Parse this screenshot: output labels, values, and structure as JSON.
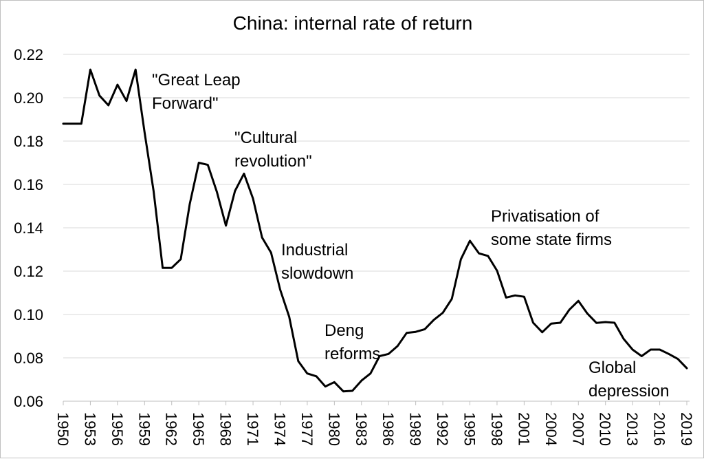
{
  "chart_data": {
    "type": "line",
    "title": "China: internal rate of return",
    "xlabel": "",
    "ylabel": "",
    "ylim": [
      0.06,
      0.22
    ],
    "yticks": [
      "0.06",
      "0.08",
      "0.10",
      "0.12",
      "0.14",
      "0.16",
      "0.18",
      "0.20",
      "0.22"
    ],
    "xticks": [
      "1950",
      "1953",
      "1956",
      "1959",
      "1962",
      "1965",
      "1968",
      "1971",
      "1974",
      "1977",
      "1980",
      "1983",
      "1986",
      "1989",
      "1992",
      "1995",
      "1998",
      "2001",
      "2004",
      "2007",
      "2010",
      "2013",
      "2016",
      "2019"
    ],
    "grid": true,
    "series": [
      {
        "x": [
          1950,
          1951,
          1952,
          1953,
          1954,
          1955,
          1956,
          1957,
          1958,
          1959,
          1960,
          1961,
          1962,
          1963,
          1964,
          1965,
          1966,
          1967,
          1968,
          1969,
          1970,
          1971,
          1972,
          1973,
          1974,
          1975,
          1976,
          1977,
          1978,
          1979,
          1980,
          1981,
          1982,
          1983,
          1984,
          1985,
          1986,
          1987,
          1988,
          1989,
          1990,
          1991,
          1992,
          1993,
          1994,
          1995,
          1996,
          1997,
          1998,
          1999,
          2000,
          2001,
          2002,
          2003,
          2004,
          2005,
          2006,
          2007,
          2008,
          2009,
          2010,
          2011,
          2012,
          2013,
          2014,
          2015,
          2016,
          2017,
          2018,
          2019
        ],
        "values": [
          0.188,
          0.188,
          0.188,
          0.213,
          0.201,
          0.1965,
          0.206,
          0.1985,
          0.213,
          0.184,
          0.157,
          0.1215,
          0.1215,
          0.1255,
          0.151,
          0.17,
          0.169,
          0.1565,
          0.141,
          0.157,
          0.165,
          0.1535,
          0.1355,
          0.1285,
          0.1115,
          0.099,
          0.0785,
          0.0728,
          0.0715,
          0.0668,
          0.0688,
          0.0645,
          0.0648,
          0.0695,
          0.0728,
          0.0808,
          0.0818,
          0.0855,
          0.0915,
          0.092,
          0.0932,
          0.0975,
          0.1008,
          0.1072,
          0.1255,
          0.134,
          0.1282,
          0.127,
          0.1202,
          0.1078,
          0.1088,
          0.1082,
          0.0962,
          0.0918,
          0.0958,
          0.0962,
          0.1022,
          0.1063,
          0.1004,
          0.0961,
          0.0965,
          0.0962,
          0.0888,
          0.0838,
          0.0808,
          0.0838,
          0.0838,
          0.0818,
          0.0795,
          0.0752
        ]
      }
    ],
    "annotations": [
      {
        "lines": [
          "\"Great Leap",
          "Forward\""
        ]
      },
      {
        "lines": [
          "\"Cultural",
          "revolution\""
        ]
      },
      {
        "lines": [
          "Industrial",
          "slowdown"
        ]
      },
      {
        "lines": [
          "Deng",
          "reforms"
        ]
      },
      {
        "lines": [
          "Privatisation of",
          "some state firms"
        ]
      },
      {
        "lines": [
          "Global",
          "depression"
        ]
      }
    ]
  }
}
